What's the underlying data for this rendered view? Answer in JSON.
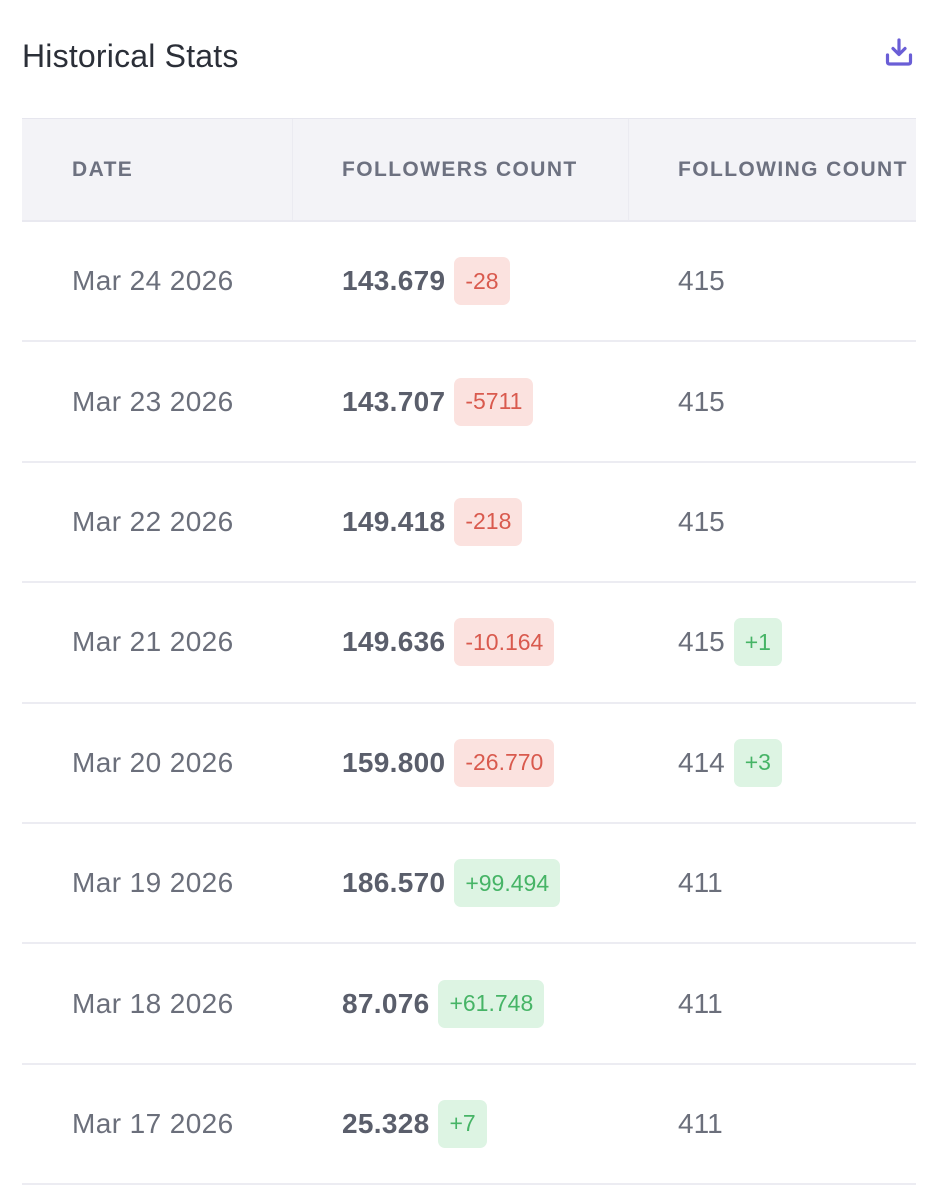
{
  "header": {
    "title": "Historical Stats"
  },
  "table": {
    "columns": [
      "DATE",
      "FOLLOWERS COUNT",
      "FOLLOWING COUNT"
    ],
    "rows": [
      {
        "date": "Mar 24 2026",
        "followers": "143.679",
        "followers_change": "-28",
        "following": "415",
        "following_change": ""
      },
      {
        "date": "Mar 23 2026",
        "followers": "143.707",
        "followers_change": "-5711",
        "following": "415",
        "following_change": ""
      },
      {
        "date": "Mar 22 2026",
        "followers": "149.418",
        "followers_change": "-218",
        "following": "415",
        "following_change": ""
      },
      {
        "date": "Mar 21 2026",
        "followers": "149.636",
        "followers_change": "-10.164",
        "following": "415",
        "following_change": "+1"
      },
      {
        "date": "Mar 20 2026",
        "followers": "159.800",
        "followers_change": "-26.770",
        "following": "414",
        "following_change": "+3"
      },
      {
        "date": "Mar 19 2026",
        "followers": "186.570",
        "followers_change": "+99.494",
        "following": "411",
        "following_change": ""
      },
      {
        "date": "Mar 18 2026",
        "followers": "87.076",
        "followers_change": "+61.748",
        "following": "411",
        "following_change": ""
      },
      {
        "date": "Mar 17 2026",
        "followers": "25.328",
        "followers_change": "+7",
        "following": "411",
        "following_change": ""
      }
    ]
  },
  "colors": {
    "accent": "#6a5ed6",
    "negative_text": "#d95a4e",
    "negative_bg": "#fbe2df",
    "positive_text": "#46b466",
    "positive_bg": "#ddf4e3"
  },
  "icons": {
    "download": "download-icon"
  }
}
